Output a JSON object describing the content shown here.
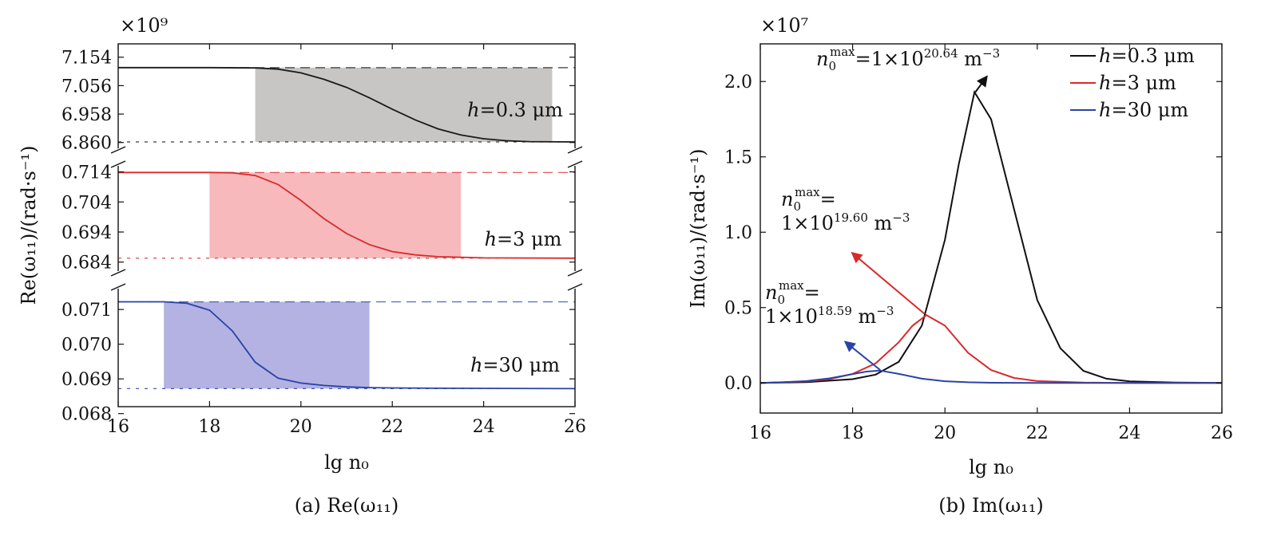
{
  "chart_data": [
    {
      "type": "line",
      "caption": "(a) Re(ω₁₁)",
      "xlabel": "lg n₀",
      "ylabel": "Re(ω₁₁)/(rad·s⁻¹)",
      "multiplier": "×10⁹",
      "xlim": [
        16,
        26
      ],
      "xticks": [
        "16",
        "18",
        "20",
        "22",
        "24",
        "26"
      ],
      "broken_axis": true,
      "panels": [
        {
          "label": "h=0.3 μm",
          "color": "#1a1a1a",
          "shade_color": "#c8c6c4",
          "ylim": [
            6.84,
            7.2
          ],
          "yticks": [
            "7.154",
            "7.056",
            "6.958",
            "6.860"
          ],
          "upper_dash": 7.118,
          "lower_dash": 6.862,
          "shade_x": [
            19,
            25.5
          ],
          "curve": {
            "x": [
              16,
              18,
              19,
              19.5,
              20,
              20.5,
              21,
              21.5,
              22,
              22.5,
              23,
              23.5,
              24,
              24.5,
              25,
              26
            ],
            "y": [
              7.118,
              7.118,
              7.117,
              7.113,
              7.1,
              7.078,
              7.05,
              7.014,
              6.975,
              6.938,
              6.907,
              6.886,
              6.873,
              6.866,
              6.863,
              6.862
            ]
          }
        },
        {
          "label": "h=3 μm",
          "color": "#d92a2a",
          "shade_color": "#f7b9bc",
          "ylim": [
            0.681,
            0.716
          ],
          "yticks": [
            "0.714",
            "0.704",
            "0.694",
            "0.684"
          ],
          "upper_dash": 0.7138,
          "lower_dash": 0.6853,
          "shade_x": [
            18,
            23.5
          ],
          "curve": {
            "x": [
              16,
              18,
              18.5,
              19,
              19.5,
              20,
              20.5,
              21,
              21.5,
              22,
              22.5,
              23,
              24,
              26
            ],
            "y": [
              0.7138,
              0.7138,
              0.7137,
              0.7128,
              0.7098,
              0.7045,
              0.6985,
              0.6935,
              0.6898,
              0.6875,
              0.6864,
              0.6858,
              0.6854,
              0.6853
            ]
          }
        },
        {
          "label": "h=30 μm",
          "color": "#2a43a6",
          "shade_color": "#b3b2e2",
          "ylim": [
            0.0682,
            0.0716
          ],
          "yticks": [
            "0.071",
            "0.070",
            "0.069",
            "0.068"
          ],
          "upper_dash": 0.07122,
          "lower_dash": 0.06872,
          "shade_x": [
            17,
            21.5
          ],
          "curve": {
            "x": [
              16,
              17,
              17.5,
              18,
              18.5,
              19,
              19.5,
              20,
              20.5,
              21,
              21.5,
              22,
              23,
              26
            ],
            "y": [
              0.07122,
              0.07122,
              0.07118,
              0.07098,
              0.07038,
              0.06948,
              0.06902,
              0.06888,
              0.06881,
              0.06877,
              0.06875,
              0.06874,
              0.06873,
              0.06872
            ]
          }
        }
      ]
    },
    {
      "type": "line",
      "caption": "(b) Im(ω₁₁)",
      "xlabel": "lg n₀",
      "ylabel": "Im(ω₁₁)/(rad·s⁻¹)",
      "multiplier": "×10⁷",
      "xlim": [
        16,
        26
      ],
      "ylim": [
        -0.2,
        2.25
      ],
      "xticks": [
        "16",
        "18",
        "20",
        "22",
        "24",
        "26"
      ],
      "yticks": [
        "0.0",
        "0.5",
        "1.0",
        "1.5",
        "2.0"
      ],
      "series": [
        {
          "name": "h=0.3 μm",
          "color": "#111111",
          "x": [
            16,
            17,
            18,
            18.5,
            19,
            19.5,
            20,
            20.3,
            20.64,
            21,
            21.5,
            22,
            22.5,
            23,
            23.5,
            24,
            25,
            26
          ],
          "y": [
            0.0,
            0.005,
            0.025,
            0.055,
            0.14,
            0.38,
            0.95,
            1.45,
            1.93,
            1.75,
            1.15,
            0.55,
            0.23,
            0.08,
            0.028,
            0.01,
            0.002,
            0.0
          ]
        },
        {
          "name": "h=3 μm",
          "color": "#d92a2a",
          "x": [
            16,
            17,
            17.5,
            18,
            18.5,
            19,
            19.3,
            19.6,
            20,
            20.5,
            21,
            21.5,
            22,
            23,
            24,
            26
          ],
          "y": [
            0.0,
            0.01,
            0.025,
            0.06,
            0.13,
            0.27,
            0.38,
            0.45,
            0.38,
            0.2,
            0.085,
            0.033,
            0.012,
            0.002,
            0.0,
            0.0
          ]
        },
        {
          "name": "h=30 μm",
          "color": "#2a43a6",
          "x": [
            16,
            16.5,
            17,
            17.5,
            18,
            18.3,
            18.59,
            19,
            19.5,
            20,
            20.5,
            21,
            22,
            26
          ],
          "y": [
            0.0,
            0.004,
            0.012,
            0.03,
            0.058,
            0.075,
            0.082,
            0.06,
            0.028,
            0.011,
            0.004,
            0.001,
            0.0,
            0.0
          ]
        }
      ],
      "annotations": [
        {
          "line1": "n₀max=1×10^20.64 m⁻³",
          "base": "n",
          "sub": "0",
          "sup": "max",
          "eq": "=1×10",
          "exp": "20.64",
          "unit": " m",
          "unitexp": "−3",
          "color": "#111111",
          "tail": [
            20.66,
            1.93
          ],
          "head": [
            20.9,
            2.03
          ]
        },
        {
          "base": "n",
          "sub": "0",
          "sup": "max",
          "eq": "=",
          "line2": "1×10",
          "exp": "19.60",
          "unit": " m",
          "unitexp": "−3",
          "color": "#d92a2a",
          "tail": [
            19.55,
            0.46
          ],
          "head": [
            18,
            0.86
          ]
        },
        {
          "base": "n",
          "sub": "0",
          "sup": "max",
          "eq": "=",
          "line2": "1×10",
          "exp": "18.59",
          "unit": " m",
          "unitexp": "−3",
          "color": "#2a43a6",
          "tail": [
            18.6,
            0.085
          ],
          "head": [
            17.85,
            0.27
          ]
        }
      ],
      "legend": "top-right"
    }
  ]
}
